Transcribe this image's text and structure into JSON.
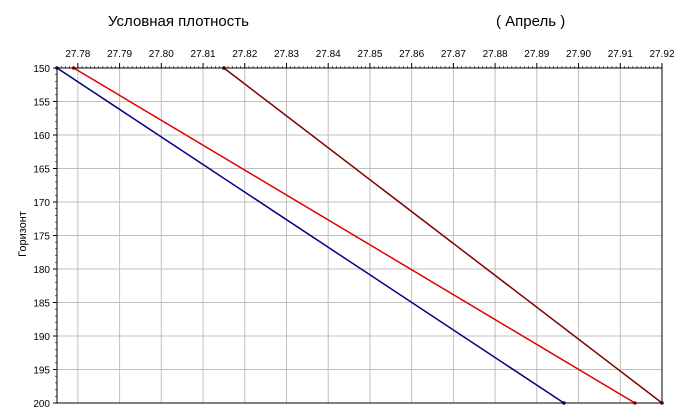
{
  "chart_data": {
    "type": "line",
    "title": "Условная плотность",
    "subtitle": "( Апрель )",
    "xlabel": "",
    "ylabel": "Горизонт",
    "xlim": [
      27.775,
      27.92
    ],
    "ylim": [
      150,
      200
    ],
    "y_inverted": true,
    "x_axis_position": "top",
    "x_ticks": [
      "27.78",
      "27.79",
      "27.80",
      "27.81",
      "27.82",
      "27.83",
      "27.84",
      "27.85",
      "27.86",
      "27.87",
      "27.88",
      "27.89",
      "27.90",
      "27.91",
      "27.92"
    ],
    "y_ticks": [
      "150",
      "155",
      "160",
      "165",
      "170",
      "175",
      "180",
      "185",
      "190",
      "195",
      "200"
    ],
    "grid": true,
    "series": [
      {
        "color": "#000080",
        "x": [
          27.775,
          27.8965
        ],
        "y": [
          150,
          200
        ]
      },
      {
        "color": "#e00000",
        "x": [
          27.779,
          27.9135
        ],
        "y": [
          150,
          200
        ]
      },
      {
        "color": "#800000",
        "x": [
          27.815,
          27.92
        ],
        "y": [
          150,
          200
        ]
      }
    ]
  }
}
